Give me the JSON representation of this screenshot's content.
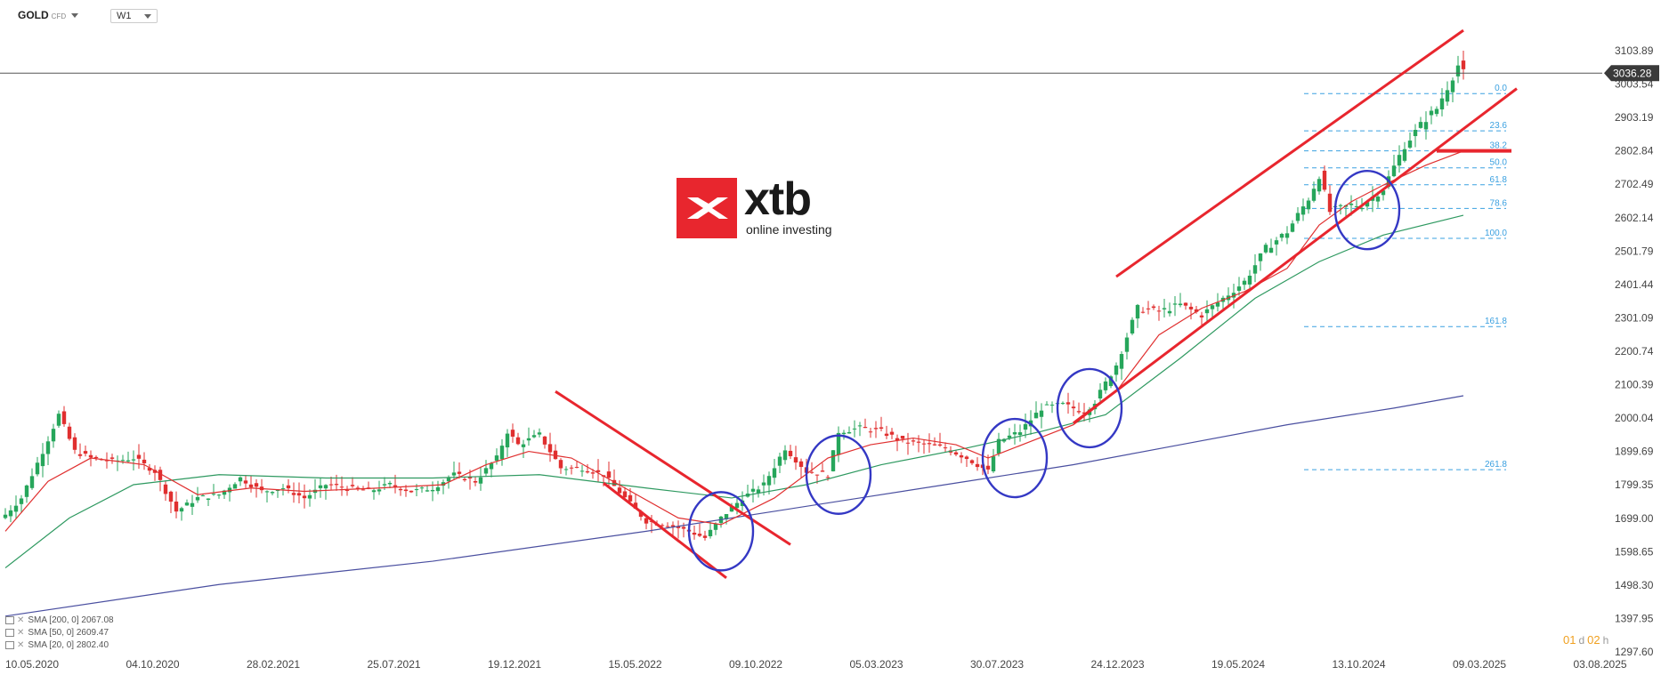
{
  "header": {
    "symbol": "GOLD",
    "symbol_type": "CFD",
    "timeframe": "W1"
  },
  "logo": {
    "brand": "xtb",
    "tagline": "online investing"
  },
  "current_price": {
    "label": "3036.28",
    "value": 3036.28,
    "color": "#3a3a3a"
  },
  "indicators": [
    {
      "label": "SMA [200, 0] 2067.08",
      "color": "#4a4fa0"
    },
    {
      "label": "SMA [50, 0] 2609.47",
      "color": "#2e9960"
    },
    {
      "label": "SMA [20, 0] 2802.40",
      "color": "#e03030"
    }
  ],
  "timer": {
    "days": "01",
    "d": "d",
    "hours": "02",
    "h": "h"
  },
  "chart_data": {
    "type": "candlestick",
    "timeframe": "W1",
    "y_ticks": [
      "3103.89",
      "3003.54",
      "2903.19",
      "2802.84",
      "2702.49",
      "2602.14",
      "2501.79",
      "2401.44",
      "2301.09",
      "2200.74",
      "2100.39",
      "2000.04",
      "1899.69",
      "1799.35",
      "1699.00",
      "1598.65",
      "1498.30",
      "1397.95",
      "1297.60"
    ],
    "ylim": [
      1297.6,
      3103.89
    ],
    "x_ticks": [
      "10.05.2020",
      "04.10.2020",
      "28.02.2021",
      "25.07.2021",
      "19.12.2021",
      "15.05.2022",
      "09.10.2022",
      "05.03.2023",
      "30.07.2023",
      "24.12.2023",
      "19.05.2024",
      "13.10.2024",
      "09.03.2025",
      "03.08.2025"
    ],
    "price_path": [
      [
        0,
        1710
      ],
      [
        3,
        1760
      ],
      [
        7,
        1900
      ],
      [
        10,
        2010
      ],
      [
        13,
        1900
      ],
      [
        16,
        1880
      ],
      [
        20,
        1870
      ],
      [
        24,
        1880
      ],
      [
        28,
        1840
      ],
      [
        32,
        1720
      ],
      [
        36,
        1760
      ],
      [
        40,
        1770
      ],
      [
        44,
        1820
      ],
      [
        48,
        1780
      ],
      [
        52,
        1790
      ],
      [
        56,
        1760
      ],
      [
        60,
        1800
      ],
      [
        64,
        1790
      ],
      [
        68,
        1780
      ],
      [
        72,
        1800
      ],
      [
        76,
        1780
      ],
      [
        80,
        1790
      ],
      [
        84,
        1830
      ],
      [
        88,
        1810
      ],
      [
        92,
        1880
      ],
      [
        94,
        1960
      ],
      [
        96,
        1920
      ],
      [
        100,
        1950
      ],
      [
        104,
        1850
      ],
      [
        108,
        1850
      ],
      [
        112,
        1830
      ],
      [
        116,
        1760
      ],
      [
        120,
        1690
      ],
      [
        124,
        1680
      ],
      [
        128,
        1660
      ],
      [
        131,
        1640
      ],
      [
        134,
        1700
      ],
      [
        138,
        1760
      ],
      [
        142,
        1800
      ],
      [
        146,
        1910
      ],
      [
        150,
        1840
      ],
      [
        154,
        1830
      ],
      [
        156,
        1960
      ],
      [
        160,
        1970
      ],
      [
        164,
        1960
      ],
      [
        168,
        1930
      ],
      [
        172,
        1920
      ],
      [
        176,
        1910
      ],
      [
        180,
        1880
      ],
      [
        184,
        1840
      ],
      [
        186,
        1930
      ],
      [
        190,
        1960
      ],
      [
        194,
        2030
      ],
      [
        198,
        2040
      ],
      [
        202,
        2020
      ],
      [
        204,
        2050
      ],
      [
        208,
        2160
      ],
      [
        212,
        2330
      ],
      [
        216,
        2320
      ],
      [
        220,
        2340
      ],
      [
        224,
        2310
      ],
      [
        228,
        2360
      ],
      [
        232,
        2410
      ],
      [
        236,
        2510
      ],
      [
        240,
        2560
      ],
      [
        244,
        2660
      ],
      [
        246,
        2730
      ],
      [
        248,
        2620
      ],
      [
        252,
        2640
      ],
      [
        254,
        2640
      ],
      [
        258,
        2690
      ],
      [
        262,
        2820
      ],
      [
        266,
        2900
      ],
      [
        268,
        2930
      ],
      [
        272,
        3060
      ],
      [
        273,
        3036.28
      ]
    ],
    "sma": [
      {
        "name": "SMA 200",
        "color": "#4a4fa0",
        "points": [
          [
            0,
            1405
          ],
          [
            40,
            1500
          ],
          [
            80,
            1570
          ],
          [
            120,
            1660
          ],
          [
            160,
            1760
          ],
          [
            180,
            1810
          ],
          [
            200,
            1860
          ],
          [
            220,
            1920
          ],
          [
            240,
            1980
          ],
          [
            260,
            2030
          ],
          [
            273,
            2067.08
          ]
        ]
      },
      {
        "name": "SMA 50",
        "color": "#2e9960",
        "points": [
          [
            0,
            1550
          ],
          [
            12,
            1700
          ],
          [
            24,
            1800
          ],
          [
            40,
            1830
          ],
          [
            60,
            1820
          ],
          [
            80,
            1820
          ],
          [
            100,
            1830
          ],
          [
            120,
            1790
          ],
          [
            136,
            1760
          ],
          [
            150,
            1800
          ],
          [
            164,
            1860
          ],
          [
            180,
            1910
          ],
          [
            194,
            1960
          ],
          [
            206,
            2010
          ],
          [
            220,
            2180
          ],
          [
            234,
            2360
          ],
          [
            246,
            2470
          ],
          [
            258,
            2550
          ],
          [
            273,
            2609.47
          ]
        ]
      },
      {
        "name": "SMA 20",
        "color": "#e03030",
        "points": [
          [
            0,
            1660
          ],
          [
            8,
            1810
          ],
          [
            16,
            1880
          ],
          [
            26,
            1860
          ],
          [
            36,
            1770
          ],
          [
            46,
            1790
          ],
          [
            56,
            1780
          ],
          [
            70,
            1790
          ],
          [
            82,
            1800
          ],
          [
            90,
            1860
          ],
          [
            98,
            1900
          ],
          [
            106,
            1880
          ],
          [
            116,
            1790
          ],
          [
            126,
            1700
          ],
          [
            134,
            1680
          ],
          [
            144,
            1760
          ],
          [
            154,
            1880
          ],
          [
            162,
            1920
          ],
          [
            170,
            1940
          ],
          [
            178,
            1920
          ],
          [
            184,
            1880
          ],
          [
            192,
            1930
          ],
          [
            200,
            1980
          ],
          [
            208,
            2080
          ],
          [
            216,
            2250
          ],
          [
            224,
            2330
          ],
          [
            232,
            2380
          ],
          [
            240,
            2450
          ],
          [
            246,
            2580
          ],
          [
            252,
            2650
          ],
          [
            258,
            2700
          ],
          [
            266,
            2760
          ],
          [
            273,
            2802.4
          ]
        ]
      }
    ],
    "fibonacci": [
      {
        "label": "0.0",
        "value": 2975
      },
      {
        "label": "23.6",
        "value": 2863
      },
      {
        "label": "38.2",
        "value": 2803
      },
      {
        "label": "50.0",
        "value": 2752
      },
      {
        "label": "61.8",
        "value": 2701
      },
      {
        "label": "78.6",
        "value": 2630
      },
      {
        "label": "100.0",
        "value": 2540
      },
      {
        "label": "161.8",
        "value": 2275
      },
      {
        "label": "261.8",
        "value": 1845
      }
    ],
    "annotations": {
      "trendlines": [
        {
          "color": "#e8262e",
          "from": [
            208,
            2425
          ],
          "to": [
            273,
            3165
          ]
        },
        {
          "color": "#e8262e",
          "from": [
            200,
            1985
          ],
          "to": [
            283,
            2990
          ]
        },
        {
          "color": "#e8262e",
          "from": [
            103,
            2080
          ],
          "to": [
            147,
            1620
          ]
        },
        {
          "color": "#e8262e",
          "from": [
            112,
            1805
          ],
          "to": [
            135,
            1520
          ]
        }
      ],
      "support_marker": {
        "color": "#e8262e",
        "value": 2803
      },
      "circles": [
        {
          "x": 134,
          "y": 1660
        },
        {
          "x": 156,
          "y": 1830
        },
        {
          "x": 189,
          "y": 1880
        },
        {
          "x": 203,
          "y": 2030
        },
        {
          "x": 255,
          "y": 2625
        }
      ]
    },
    "colors": {
      "up": "#26a65b",
      "down": "#e02f2f",
      "annotation": "#e8262e",
      "circle": "#3438c4",
      "fib": "#3aa0e0"
    }
  }
}
